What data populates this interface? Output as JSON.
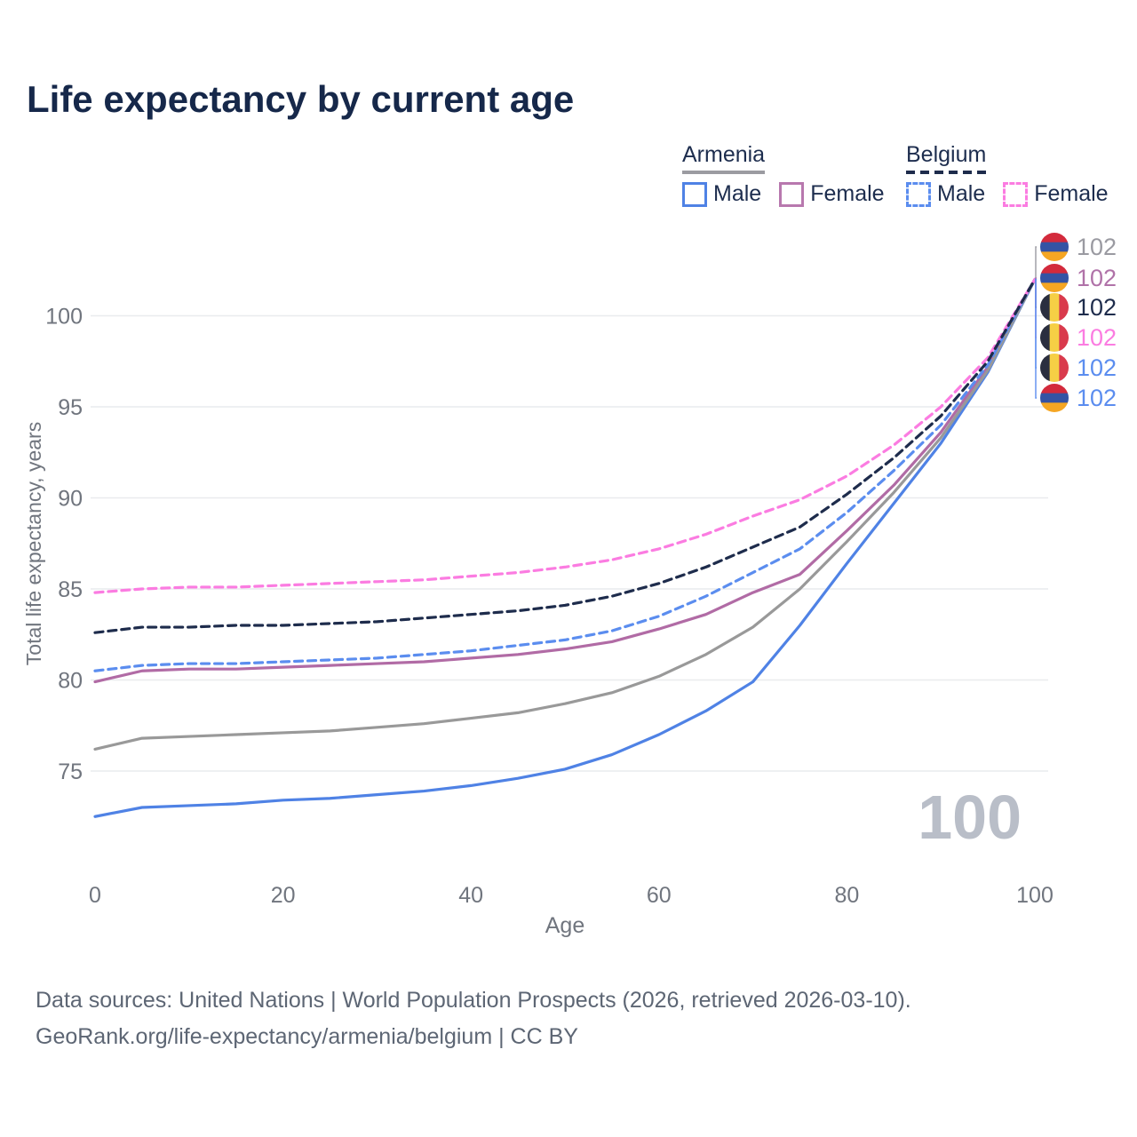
{
  "title": "Life expectancy by current age",
  "legend": {
    "groups": [
      {
        "label": "Armenia",
        "line_style": "solid",
        "items": [
          {
            "label": "Male"
          },
          {
            "label": "Female"
          }
        ]
      },
      {
        "label": "Belgium",
        "line_style": "dashed",
        "items": [
          {
            "label": "Male"
          },
          {
            "label": "Female"
          }
        ]
      }
    ]
  },
  "chart_data": {
    "type": "line",
    "title": "Life expectancy by current age",
    "xlabel": "Age",
    "ylabel": "Total life expectancy, years",
    "xlim": [
      0,
      100
    ],
    "ylim": [
      72,
      103
    ],
    "x_ticks": [
      0,
      20,
      40,
      60,
      80,
      100
    ],
    "y_ticks": [
      75,
      80,
      85,
      90,
      95,
      100
    ],
    "grid": "horizontal",
    "legend_position": "top-right",
    "age_counter_watermark": "100",
    "x": [
      0,
      5,
      10,
      15,
      20,
      25,
      30,
      35,
      40,
      45,
      50,
      55,
      60,
      65,
      70,
      75,
      80,
      85,
      90,
      95,
      100
    ],
    "series": [
      {
        "name": "Armenia Male",
        "country": "armenia",
        "color": "#4f82e5",
        "dash": "solid",
        "values": [
          72.5,
          73.0,
          73.1,
          73.2,
          73.4,
          73.5,
          73.7,
          73.9,
          74.2,
          74.6,
          75.1,
          75.9,
          77.0,
          78.3,
          79.9,
          83.0,
          86.4,
          89.7,
          93.0,
          96.9,
          102
        ]
      },
      {
        "name": "Armenia Female",
        "country": "armenia",
        "color": "#b16ba5",
        "dash": "solid",
        "values": [
          79.9,
          80.5,
          80.6,
          80.6,
          80.7,
          80.8,
          80.9,
          81.0,
          81.2,
          81.4,
          81.7,
          82.1,
          82.8,
          83.6,
          84.8,
          85.8,
          88.2,
          90.7,
          93.6,
          97.2,
          102
        ]
      },
      {
        "name": "Armenia",
        "country": "armenia",
        "color": "#999999",
        "dash": "solid",
        "values": [
          76.2,
          76.8,
          76.9,
          77.0,
          77.1,
          77.2,
          77.4,
          77.6,
          77.9,
          78.2,
          78.7,
          79.3,
          80.2,
          81.4,
          82.9,
          85.0,
          87.6,
          90.3,
          93.3,
          97.0,
          102
        ]
      },
      {
        "name": "Belgium Male",
        "country": "belgium",
        "color": "#5b8def",
        "dash": "dashed",
        "values": [
          80.5,
          80.8,
          80.9,
          80.9,
          81.0,
          81.1,
          81.2,
          81.4,
          81.6,
          81.9,
          82.2,
          82.7,
          83.5,
          84.6,
          85.9,
          87.2,
          89.2,
          91.5,
          94.0,
          97.3,
          102
        ]
      },
      {
        "name": "Belgium Female",
        "country": "belgium",
        "color": "#fb7ce1",
        "dash": "dashed",
        "values": [
          84.8,
          85.0,
          85.1,
          85.1,
          85.2,
          85.3,
          85.4,
          85.5,
          85.7,
          85.9,
          86.2,
          86.6,
          87.2,
          88.0,
          89.0,
          89.9,
          91.2,
          92.9,
          95.0,
          97.7,
          102
        ]
      },
      {
        "name": "Belgium",
        "country": "belgium",
        "color": "#1e2c4c",
        "dash": "dashed",
        "values": [
          82.6,
          82.9,
          82.9,
          83.0,
          83.0,
          83.1,
          83.2,
          83.4,
          83.6,
          83.8,
          84.1,
          84.6,
          85.3,
          86.2,
          87.3,
          88.4,
          90.2,
          92.2,
          94.5,
          97.5,
          102
        ]
      }
    ],
    "end_labels": [
      {
        "flag": "armenia",
        "value": "102",
        "color": "#9a9aa1",
        "series": "Armenia"
      },
      {
        "flag": "armenia",
        "value": "102",
        "color": "#b072a8",
        "series": "Armenia Female"
      },
      {
        "flag": "belgium",
        "value": "102",
        "color": "#1e2c4c",
        "series": "Belgium"
      },
      {
        "flag": "belgium",
        "value": "102",
        "color": "#fb7ce1",
        "series": "Belgium Female"
      },
      {
        "flag": "belgium",
        "value": "102",
        "color": "#5b8def",
        "series": "Belgium Male"
      },
      {
        "flag": "armenia",
        "value": "102",
        "color": "#5b8def",
        "series": "Armenia Male"
      }
    ],
    "flag_colors": {
      "armenia": [
        "#d32a3c",
        "#3453a4",
        "#f5a623"
      ],
      "belgium": [
        "#2a2e3f",
        "#f6cf45",
        "#d93a4c"
      ]
    }
  },
  "footer": {
    "line1": "Data sources: United Nations | World Population Prospects (2026, retrieved 2026-03-10).",
    "line2": "GeoRank.org/life-expectancy/armenia/belgium | CC BY"
  }
}
